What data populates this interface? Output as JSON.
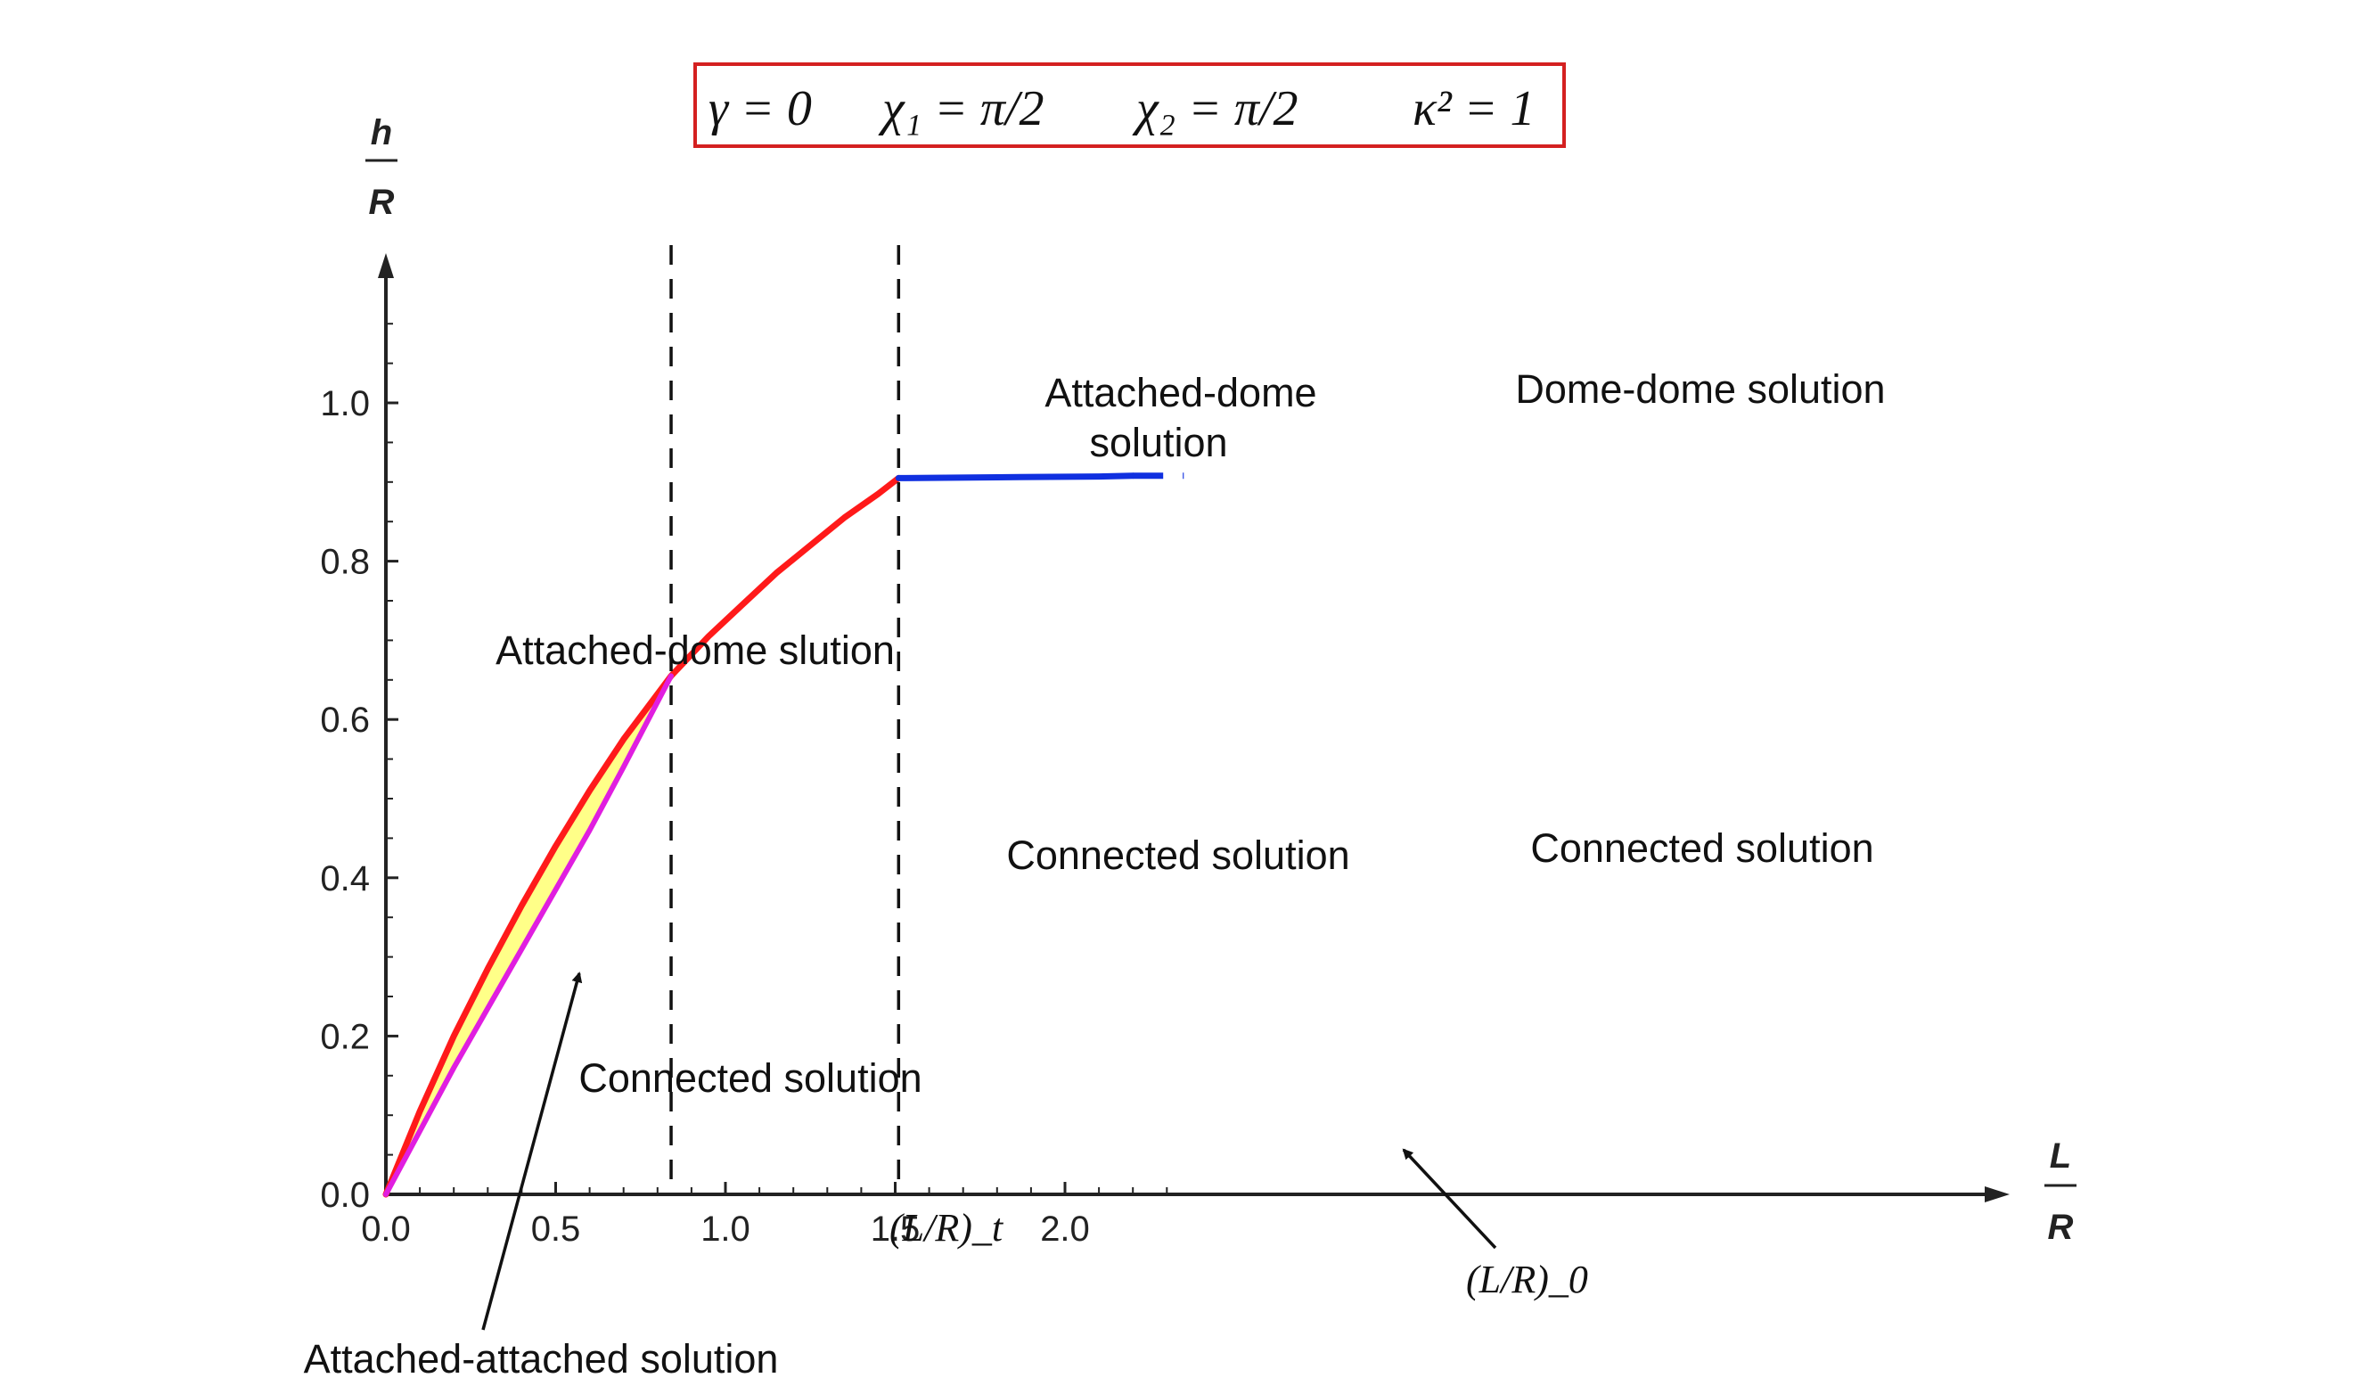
{
  "chart_data": {
    "type": "line",
    "parameters": [
      "γ = 0",
      "χ₁ = π/2",
      "χ₂ = π/2",
      "κ² = 1"
    ],
    "xlabel": {
      "num": "L",
      "den": "R"
    },
    "ylabel": {
      "num": "h",
      "den": "R"
    },
    "xlim": [
      0,
      2.4
    ],
    "ylim": [
      0,
      1.15
    ],
    "xticks": [
      {
        "value": 0.0,
        "label": "0.0"
      },
      {
        "value": 0.5,
        "label": "0.5"
      },
      {
        "value": 1.0,
        "label": "1.0"
      },
      {
        "value": 1.5,
        "label": "1.5"
      },
      {
        "value": 2.0,
        "label": "2.0"
      }
    ],
    "yticks": [
      {
        "value": 0.0,
        "label": "0.0"
      },
      {
        "value": 0.2,
        "label": "0.2"
      },
      {
        "value": 0.4,
        "label": "0.4"
      },
      {
        "value": 0.6,
        "label": "0.6"
      },
      {
        "value": 0.8,
        "label": "0.8"
      },
      {
        "value": 1.0,
        "label": "1.0"
      }
    ],
    "series": [
      {
        "color": "#ff1a1a",
        "x": [
          0,
          0.1,
          0.2,
          0.3,
          0.4,
          0.5,
          0.6,
          0.7,
          0.84,
          0.95,
          1.05,
          1.15,
          1.25,
          1.35,
          1.45,
          1.51
        ],
        "y": [
          0,
          0.105,
          0.2,
          0.285,
          0.365,
          0.44,
          0.51,
          0.575,
          0.655,
          0.705,
          0.745,
          0.785,
          0.82,
          0.855,
          0.885,
          0.905
        ]
      },
      {
        "color": "#e01ee0",
        "x": [
          0,
          0.1,
          0.2,
          0.3,
          0.4,
          0.5,
          0.6,
          0.7,
          0.84
        ],
        "y": [
          0,
          0.08,
          0.16,
          0.235,
          0.31,
          0.385,
          0.46,
          0.54,
          0.655
        ]
      },
      {
        "color": "#1030e0",
        "x": [
          1.51,
          1.8,
          2.1,
          2.2
        ],
        "y": [
          0.905,
          0.906,
          0.907,
          0.908
        ],
        "dashed_extension": {
          "x": [
            2.2,
            2.35
          ],
          "y": [
            0.908,
            0.908
          ]
        }
      }
    ],
    "fill_between": {
      "color": "#ffff88",
      "upper": "red",
      "lower": "magenta",
      "x_range": [
        0,
        0.84
      ]
    },
    "vertical_lines": [
      {
        "x": 0.84,
        "style": "dashed",
        "label": "(L/R)_t"
      },
      {
        "x": 1.51,
        "style": "dashed",
        "label": "(L/R)_0"
      }
    ],
    "annotations": [
      {
        "text": "Attached-dome slution",
        "x": 0.47,
        "y": 0.67
      },
      {
        "text": "Connected solution",
        "x": 0.54,
        "y": 0.135
      },
      {
        "text": "Attached-dome",
        "x": 1.19,
        "y": 0.99
      },
      {
        "text": "solution",
        "x": 1.19,
        "y": 0.93
      },
      {
        "text": "Connected solution",
        "x": 1.19,
        "y": 0.41
      },
      {
        "text": "Dome-dome solution",
        "x": 1.98,
        "y": 0.995
      },
      {
        "text": "Connected solution",
        "x": 1.98,
        "y": 0.42
      },
      {
        "text": "Attached-attached solution",
        "arrow_to": [
          0.29,
          0.27
        ]
      },
      {
        "text": "(L/R)_0",
        "arrow_to": [
          1.52,
          0.05
        ]
      }
    ]
  }
}
